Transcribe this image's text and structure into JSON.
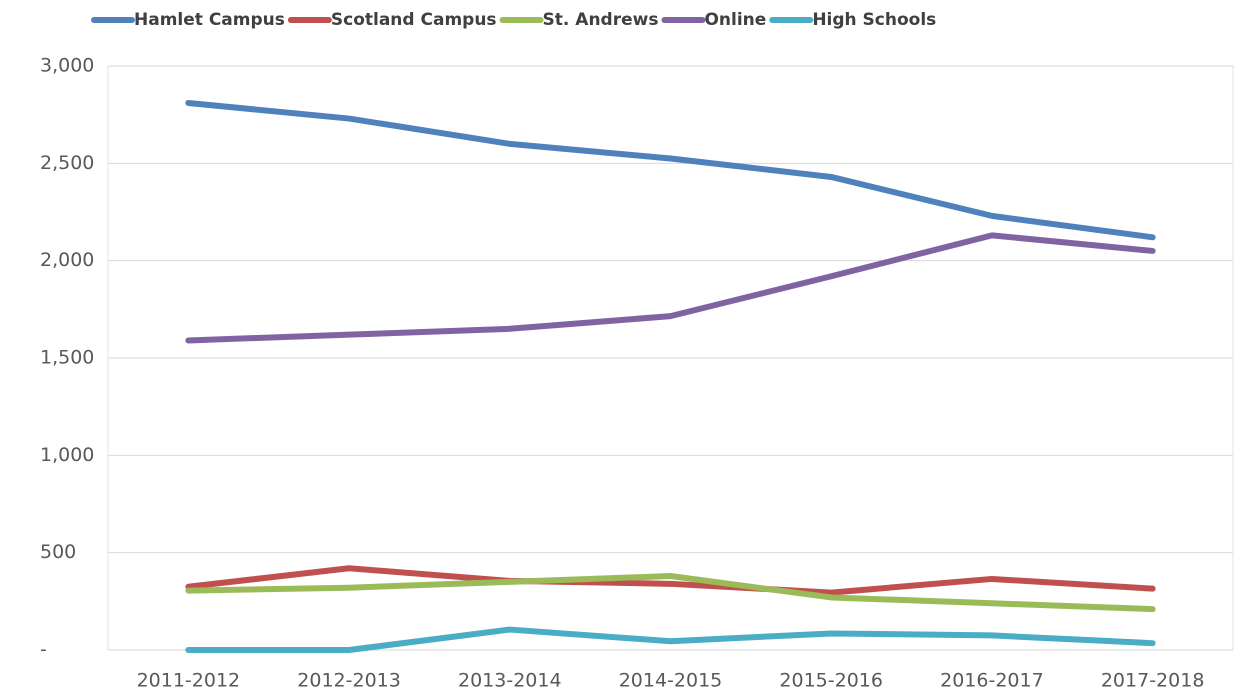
{
  "chart_data": {
    "type": "line",
    "categories": [
      "2011-2012",
      "2012-2013",
      "2013-2014",
      "2014-2015",
      "2015-2016",
      "2016-2017",
      "2017-2018"
    ],
    "series": [
      {
        "name": "Hamlet Campus",
        "color": "#4f81bd",
        "values": [
          2810,
          2730,
          2600,
          2525,
          2430,
          2230,
          2120
        ]
      },
      {
        "name": "Scotland Campus",
        "color": "#c0504d",
        "values": [
          325,
          420,
          355,
          340,
          295,
          365,
          315
        ]
      },
      {
        "name": "St. Andrews",
        "color": "#9bbb59",
        "values": [
          305,
          320,
          350,
          380,
          270,
          240,
          210
        ]
      },
      {
        "name": "Online",
        "color": "#8064a2",
        "values": [
          1590,
          1620,
          1650,
          1715,
          1920,
          2130,
          2050
        ]
      },
      {
        "name": "High Schools",
        "color": "#4bacc6",
        "values": [
          0,
          0,
          105,
          45,
          85,
          75,
          35
        ]
      }
    ],
    "ylim": [
      0,
      3000
    ],
    "yticks": [
      {
        "value": 0,
        "label": "-"
      },
      500,
      {
        "value": 1000,
        "label": "1,000"
      },
      {
        "value": 1500,
        "label": "1,500"
      },
      {
        "value": 2000,
        "label": "2,000"
      },
      {
        "value": 2500,
        "label": "2,500"
      },
      {
        "value": 3000,
        "label": "3,000"
      }
    ],
    "grid": true,
    "legend": "top"
  }
}
